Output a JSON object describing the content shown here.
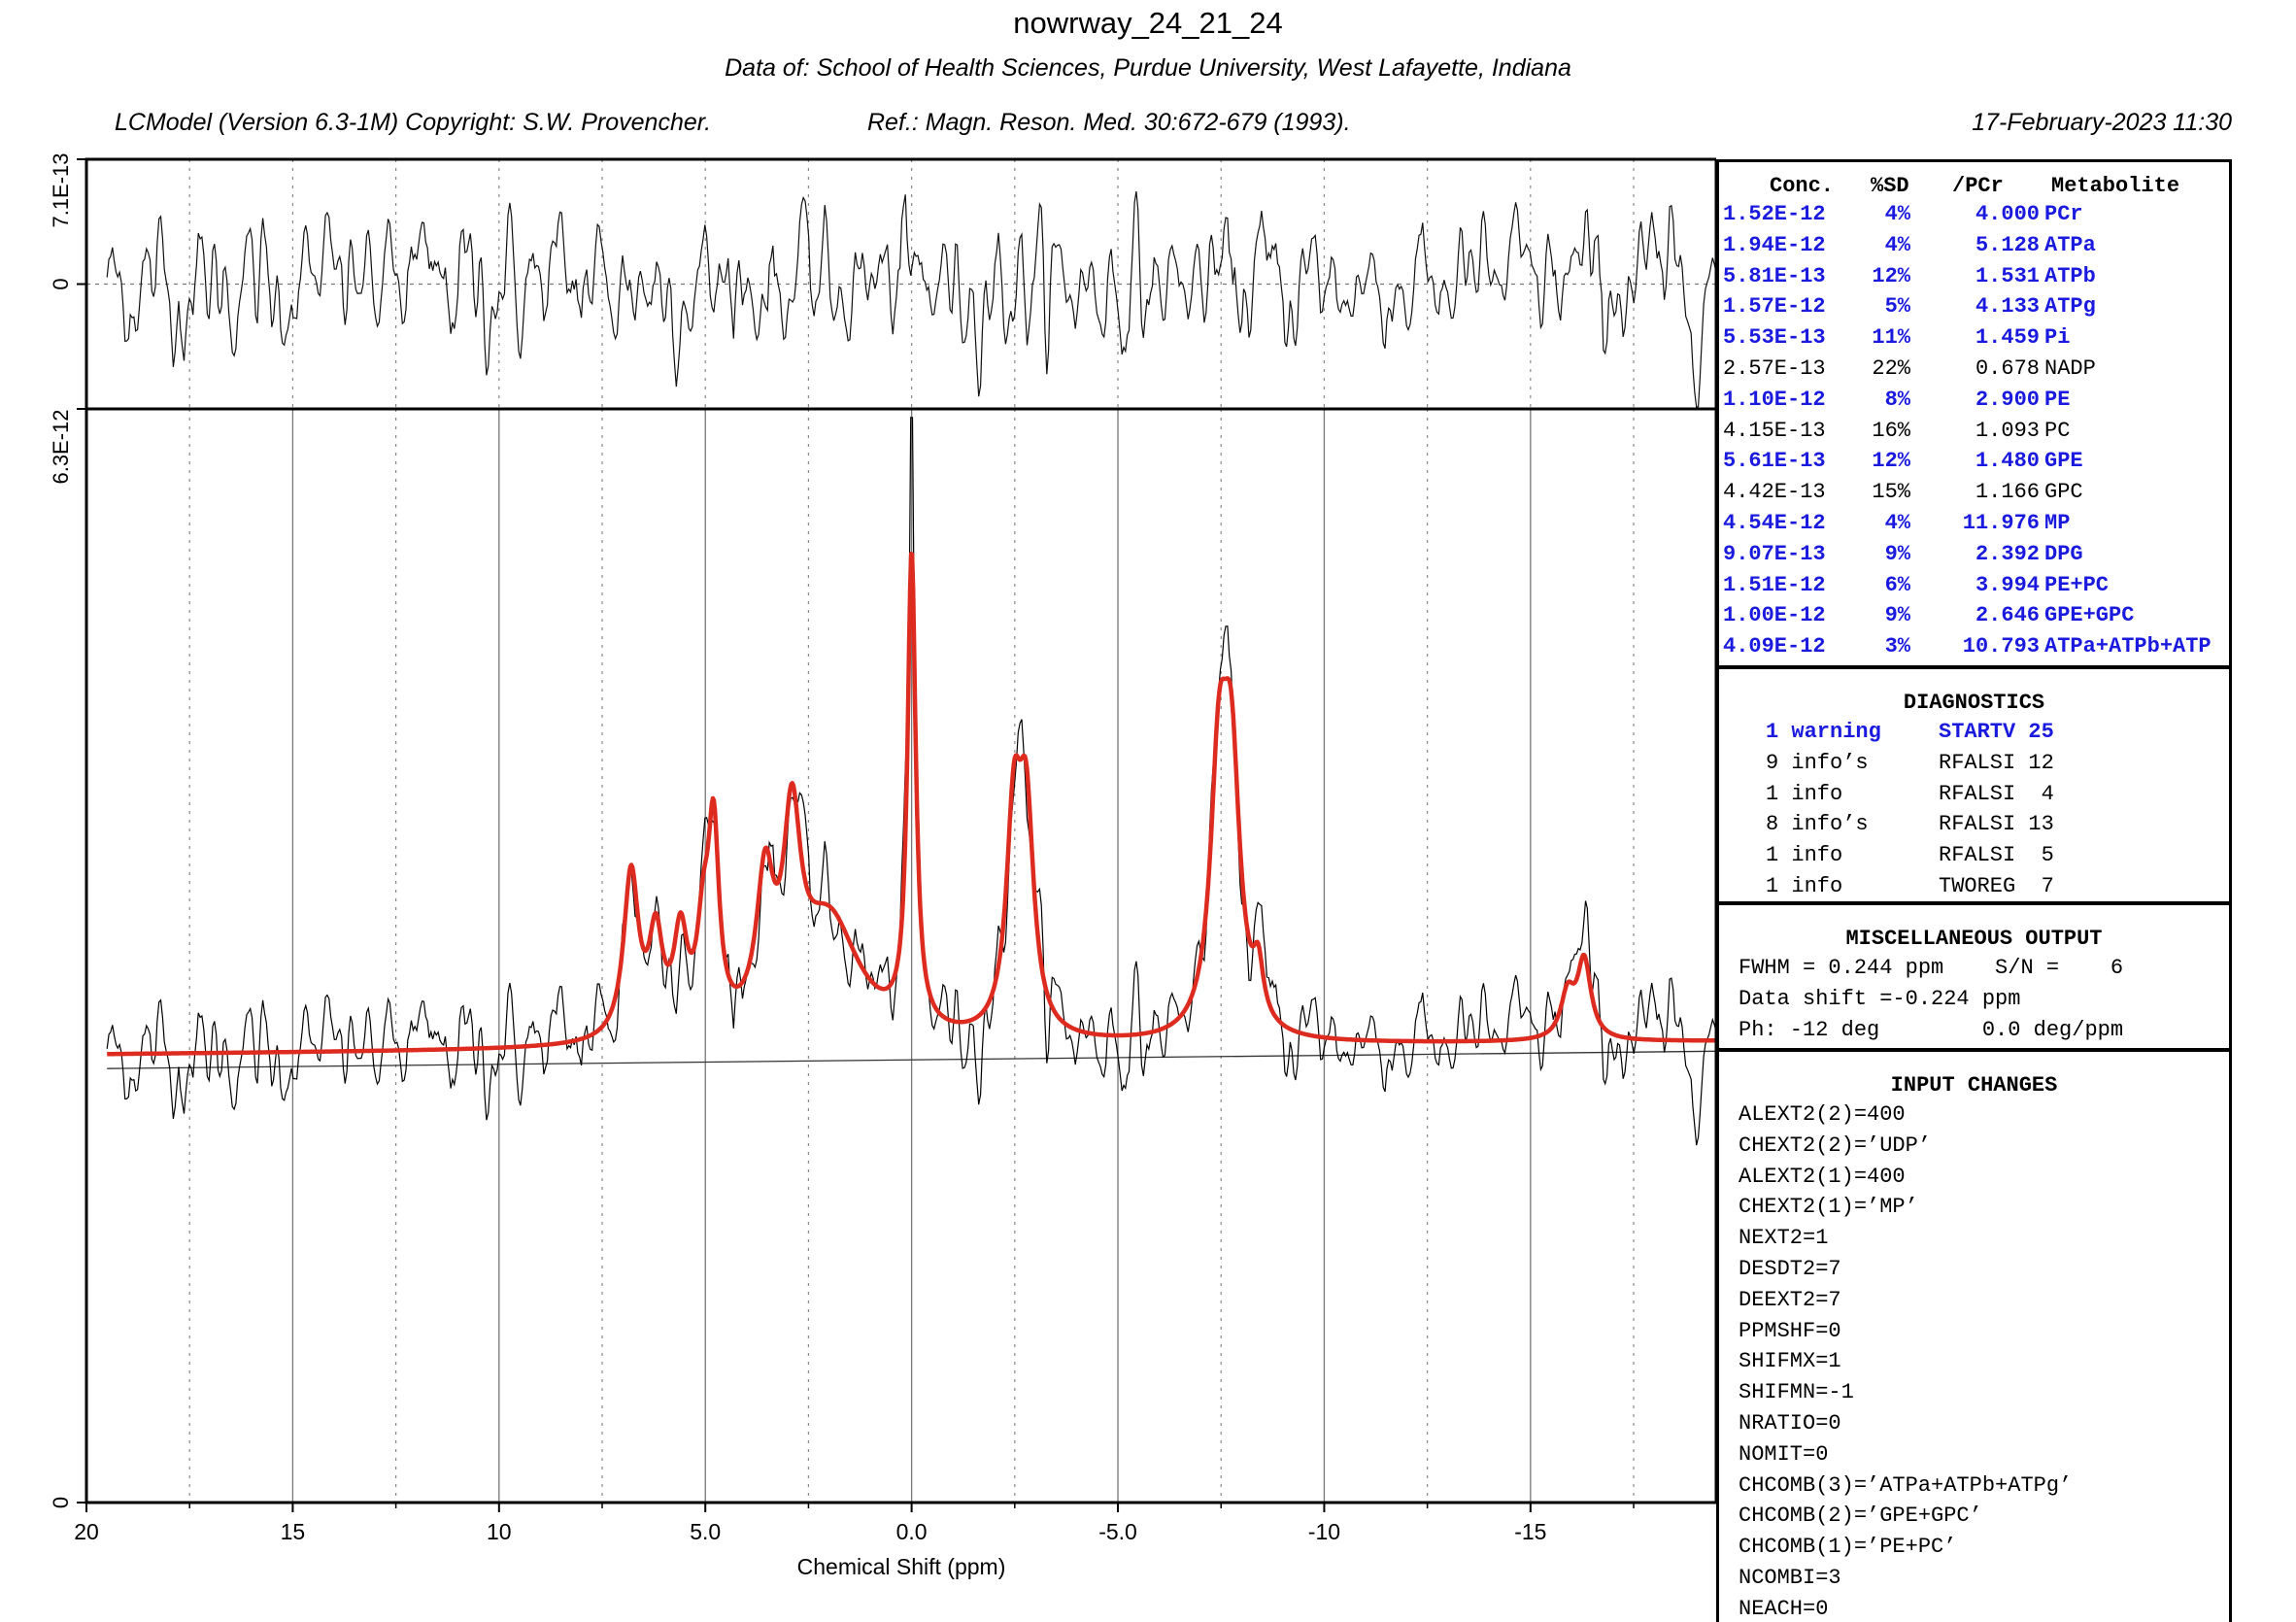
{
  "header": {
    "title": "nowrway_24_21_24",
    "subtitle": "Data of: School of Health Sciences, Purdue University, West Lafayette, Indiana",
    "copyright": "LCModel (Version 6.3-1M) Copyright: S.W. Provencher.",
    "reference": "Ref.: Magn. Reson. Med. 30:672-679 (1993).",
    "date": "17-February-2023  11:30"
  },
  "chart_data": {
    "type": "line",
    "xlabel": "Chemical Shift (ppm)",
    "x_reversed": true,
    "xlim": [
      20,
      -19.5
    ],
    "x_ticks": [
      20,
      15,
      10,
      5.0,
      0.0,
      -5.0,
      -10,
      -15
    ],
    "x_tick_labels": [
      "20",
      "15",
      "10",
      "5.0",
      "0.0",
      "-5.0",
      "-10",
      "-15"
    ],
    "y_main_tick_labels": [
      "0",
      "6.3E-12"
    ],
    "y_main_lim": [
      0,
      6.3e-12
    ],
    "y_resid_tick_labels": [
      "7.1E-13",
      "0"
    ],
    "y_resid_lim": [
      -7.1e-13,
      7.1e-13
    ],
    "grid": "dotted vertical every 2.5 ppm",
    "colors": {
      "fit": "#dd2b1f",
      "data": "#000000",
      "baseline": "#000000"
    },
    "baseline": {
      "x": [
        19.5,
        -19.5
      ],
      "y": [
        2.5e-12,
        2.6e-12
      ]
    },
    "fit_peaks": [
      {
        "name": "PCr",
        "ppm": 0.0,
        "amp": 2.72e-12,
        "width": 0.12
      },
      {
        "name": "ATPg",
        "ppm": -2.48,
        "amp": 1.18e-12,
        "width": 0.22
      },
      {
        "name": "ATPg",
        "ppm": -2.78,
        "amp": 1.18e-12,
        "width": 0.22
      },
      {
        "name": "ATPa",
        "ppm": -7.45,
        "amp": 1.42e-12,
        "width": 0.25
      },
      {
        "name": "ATPa",
        "ppm": -7.75,
        "amp": 1.42e-12,
        "width": 0.25
      },
      {
        "name": "ATPa",
        "ppm": -8.4,
        "amp": 3e-13,
        "width": 0.15
      },
      {
        "name": "ATPb",
        "ppm": -15.9,
        "amp": 2.5e-13,
        "width": 0.2
      },
      {
        "name": "ATPb",
        "ppm": -16.3,
        "amp": 4.5e-13,
        "width": 0.2
      },
      {
        "name": "PE",
        "ppm": 6.8,
        "amp": 9.5e-13,
        "width": 0.22
      },
      {
        "name": "PC",
        "ppm": 6.2,
        "amp": 5.5e-13,
        "width": 0.2
      },
      {
        "name": "Pi",
        "ppm": 5.6,
        "amp": 5.5e-13,
        "width": 0.2
      },
      {
        "name": "Pi",
        "ppm": 5.05,
        "amp": 5e-13,
        "width": 0.18
      },
      {
        "name": "NADP",
        "ppm": 4.8,
        "amp": 1.1e-12,
        "width": 0.16
      },
      {
        "name": "GPE",
        "ppm": 3.55,
        "amp": 8e-13,
        "width": 0.25
      },
      {
        "name": "GPC",
        "ppm": 2.9,
        "amp": 1.05e-12,
        "width": 0.25
      },
      {
        "name": "DPG",
        "ppm": 2.0,
        "amp": 7e-13,
        "width": 0.9
      }
    ],
    "fit_offset": 8e-14
  },
  "concentration_table": {
    "headers": [
      "Conc.",
      "%SD",
      "/PCr",
      "Metabolite"
    ],
    "rows": [
      {
        "conc": "1.52E-12",
        "sd": "4%",
        "ratio": "4.000",
        "name": "PCr",
        "highlight": true
      },
      {
        "conc": "1.94E-12",
        "sd": "4%",
        "ratio": "5.128",
        "name": "ATPa",
        "highlight": true
      },
      {
        "conc": "5.81E-13",
        "sd": "12%",
        "ratio": "1.531",
        "name": "ATPb",
        "highlight": true
      },
      {
        "conc": "1.57E-12",
        "sd": "5%",
        "ratio": "4.133",
        "name": "ATPg",
        "highlight": true
      },
      {
        "conc": "5.53E-13",
        "sd": "11%",
        "ratio": "1.459",
        "name": "Pi",
        "highlight": true
      },
      {
        "conc": "2.57E-13",
        "sd": "22%",
        "ratio": "0.678",
        "name": "NADP",
        "highlight": false
      },
      {
        "conc": "1.10E-12",
        "sd": "8%",
        "ratio": "2.900",
        "name": "PE",
        "highlight": true
      },
      {
        "conc": "4.15E-13",
        "sd": "16%",
        "ratio": "1.093",
        "name": "PC",
        "highlight": false
      },
      {
        "conc": "5.61E-13",
        "sd": "12%",
        "ratio": "1.480",
        "name": "GPE",
        "highlight": true
      },
      {
        "conc": "4.42E-13",
        "sd": "15%",
        "ratio": "1.166",
        "name": "GPC",
        "highlight": false
      },
      {
        "conc": "4.54E-12",
        "sd": "4%",
        "ratio": "11.976",
        "name": "MP",
        "highlight": true
      },
      {
        "conc": "9.07E-13",
        "sd": "9%",
        "ratio": "2.392",
        "name": "DPG",
        "highlight": true
      },
      {
        "conc": "1.51E-12",
        "sd": "6%",
        "ratio": "3.994",
        "name": "PE+PC",
        "highlight": true
      },
      {
        "conc": "1.00E-12",
        "sd": "9%",
        "ratio": "2.646",
        "name": "GPE+GPC",
        "highlight": true
      },
      {
        "conc": "4.09E-12",
        "sd": "3%",
        "ratio": "10.793",
        "name": "ATPa+ATPb+ATP",
        "highlight": true
      }
    ]
  },
  "diagnostics": {
    "title": "DIAGNOSTICS",
    "rows": [
      {
        "count": "1 warning",
        "code": "STARTV 25",
        "highlight": true
      },
      {
        "count": "9 info’s",
        "code": "RFALSI 12",
        "highlight": false
      },
      {
        "count": "1 info",
        "code": "RFALSI  4",
        "highlight": false
      },
      {
        "count": "8 info’s",
        "code": "RFALSI 13",
        "highlight": false
      },
      {
        "count": "1 info",
        "code": "RFALSI  5",
        "highlight": false
      },
      {
        "count": "1 info",
        "code": "TWOREG  7",
        "highlight": false
      }
    ]
  },
  "misc_output": {
    "title": "MISCELLANEOUS OUTPUT",
    "lines": [
      "FWHM = 0.244 ppm    S/N =    6",
      "Data shift =-0.224 ppm",
      "Ph: -12 deg        0.0 deg/ppm"
    ]
  },
  "input_changes": {
    "title": "INPUT CHANGES",
    "lines": [
      "ALEXT2(2)=400",
      "CHEXT2(2)=’UDP’",
      "ALEXT2(1)=400",
      "CHEXT2(1)=’MP’",
      "NEXT2=1",
      "DESDT2=7",
      "DEEXT2=7",
      "PPMSHF=0",
      "SHIFMX=1",
      "SHIFMN=-1",
      "NRATIO=0",
      "NOMIT=0",
      "CHCOMB(3)=’ATPa+ATPb+ATPg’",
      "CHCOMB(2)=’GPE+GPC’",
      "CHCOMB(1)=’PE+PC’",
      "NCOMBI=3",
      "NEACH=0"
    ]
  }
}
